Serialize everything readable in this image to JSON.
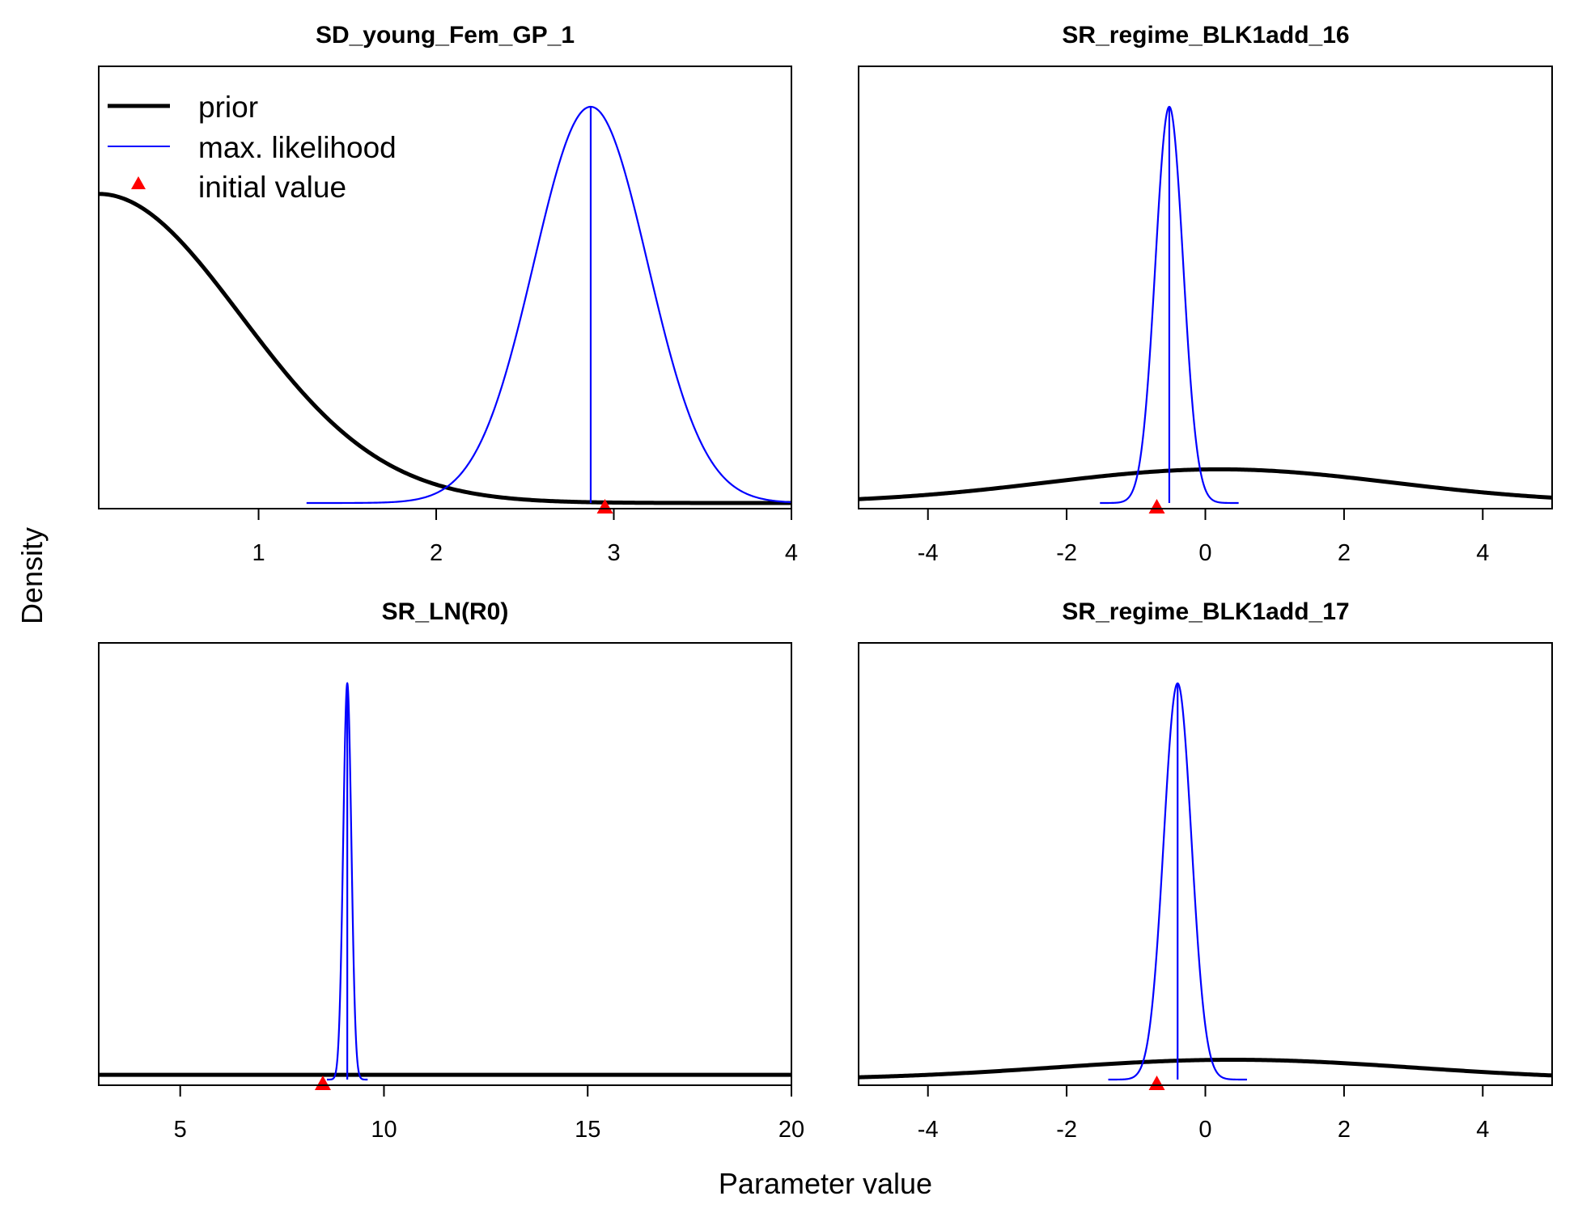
{
  "figure": {
    "xlabel": "Parameter value",
    "ylabel": "Density"
  },
  "legend": {
    "items": [
      {
        "label": "prior",
        "kind": "line",
        "color": "#000000"
      },
      {
        "label": "max. likelihood",
        "kind": "line",
        "color": "#0000ff"
      },
      {
        "label": "initial value",
        "kind": "triangle",
        "color": "#ff0000"
      }
    ],
    "placement": "top-left of first panel"
  },
  "chart_data": [
    {
      "type": "line",
      "title": "SD_young_Fem_GP_1",
      "xlim": [
        0.1,
        4.0
      ],
      "ticks": [
        1,
        2,
        3,
        4
      ],
      "legend": true,
      "prior": {
        "dist": "normal",
        "mean": 0.1,
        "sd": 0.8,
        "peak_frac": 0.78
      },
      "mle": {
        "mean": 2.87,
        "sd": 0.32
      },
      "initial_value": 2.95,
      "color_prior": "#000000",
      "color_mle": "#0000ff",
      "color_initial": "#ff0000"
    },
    {
      "type": "line",
      "title": "SR_regime_BLK1add_16",
      "xlim": [
        -5,
        5
      ],
      "ticks": [
        -4,
        -2,
        0,
        2,
        4
      ],
      "legend": false,
      "prior": {
        "dist": "normal",
        "mean": 0.2,
        "sd": 2.5,
        "peak_frac": 0.085
      },
      "mle": {
        "mean": -0.52,
        "sd": 0.2
      },
      "initial_value": -0.7,
      "color_prior": "#000000",
      "color_mle": "#0000ff",
      "color_initial": "#ff0000"
    },
    {
      "type": "line",
      "title": "SR_LN(R0)",
      "xlim": [
        3,
        20
      ],
      "ticks": [
        5,
        10,
        15,
        20
      ],
      "legend": false,
      "prior": {
        "dist": "flat",
        "peak_frac": 0.012
      },
      "mle": {
        "mean": 9.1,
        "sd": 0.1
      },
      "initial_value": 8.5,
      "color_prior": "#000000",
      "color_mle": "#0000ff",
      "color_initial": "#ff0000"
    },
    {
      "type": "line",
      "title": "SR_regime_BLK1add_17",
      "xlim": [
        -5,
        5
      ],
      "ticks": [
        -4,
        -2,
        0,
        2,
        4
      ],
      "legend": false,
      "prior": {
        "dist": "normal",
        "mean": 0.4,
        "sd": 2.6,
        "peak_frac": 0.05
      },
      "mle": {
        "mean": -0.4,
        "sd": 0.2
      },
      "initial_value": -0.7,
      "color_prior": "#000000",
      "color_mle": "#0000ff",
      "color_initial": "#ff0000"
    }
  ]
}
